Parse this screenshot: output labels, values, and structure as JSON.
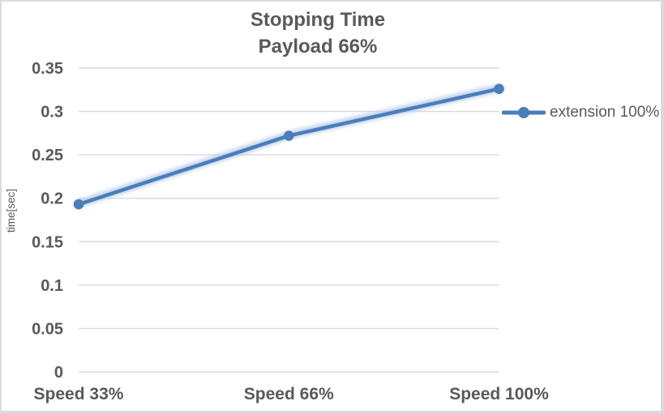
{
  "window": {
    "background": "#ffffff",
    "border_color": "#d9d9d9"
  },
  "chart_data": {
    "type": "line",
    "title": "Stopping Time",
    "subtitle": "Payload 66%",
    "xlabel": "",
    "ylabel": "time[sec]",
    "categories": [
      "Speed 33%",
      "Speed 66%",
      "Speed 100%"
    ],
    "series": [
      {
        "name": "extension 100%",
        "values": [
          0.193,
          0.272,
          0.326
        ],
        "color": "#4a7ebb",
        "glow_color": "#b9cde8",
        "marker": "circle"
      }
    ],
    "ylim": [
      0,
      0.35
    ],
    "ytick_interval": 0.05,
    "ytick_labels": [
      "0",
      "0.05",
      "0.1",
      "0.15",
      "0.2",
      "0.25",
      "0.3",
      "0.35"
    ],
    "grid": "horizontal",
    "gridline_color": "#d9d9d9",
    "text_color": "#595959",
    "legend_position": "right",
    "legend_entries": [
      "extension 100%"
    ]
  }
}
